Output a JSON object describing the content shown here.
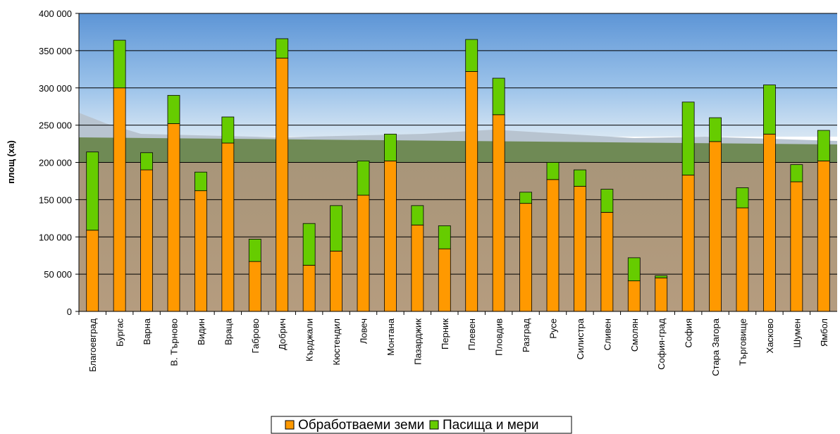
{
  "chart_data": {
    "type": "stacked_bar",
    "y_label": "площ (ха)",
    "categories": [
      "Благоевград",
      "Бургас",
      "Варна",
      "В. Търново",
      "Видин",
      "Враца",
      "Габрово",
      "Добрич",
      "Кърджали",
      "Кюстендил",
      "Ловеч",
      "Монтана",
      "Пазарджик",
      "Перник",
      "Плевен",
      "Пловдив",
      "Разград",
      "Русе",
      "Силистра",
      "Сливен",
      "Смолян",
      "София-град",
      "София",
      "Стара Загора",
      "Търговище",
      "Хасково",
      "Шумен",
      "Ямбол"
    ],
    "series": [
      {
        "name": "Обработваеми земи",
        "color": "#ff9900",
        "values": [
          109000,
          300000,
          190000,
          252000,
          162000,
          226000,
          67000,
          340000,
          62000,
          81000,
          156000,
          202000,
          116000,
          84000,
          322000,
          264000,
          145000,
          177000,
          168000,
          133000,
          41000,
          45000,
          183000,
          228000,
          139000,
          238000,
          174000,
          202000
        ]
      },
      {
        "name": "Пасища и мери",
        "color": "#66cc00",
        "values": [
          105000,
          64000,
          23000,
          38000,
          25000,
          35000,
          30000,
          26000,
          56000,
          61000,
          46000,
          36000,
          26000,
          31000,
          43000,
          49000,
          15000,
          23000,
          22000,
          31000,
          31000,
          3000,
          98000,
          32000,
          27000,
          66000,
          23000,
          41000
        ]
      }
    ],
    "ylim": [
      0,
      400000
    ],
    "yticks": [
      0,
      {
        "value": 50000,
        "label": "50 000"
      },
      {
        "value": 100000,
        "label": "100 000"
      },
      {
        "value": 150000,
        "label": "150 000"
      },
      {
        "value": 200000,
        "label": "200 000"
      },
      {
        "value": 250000,
        "label": "250 000"
      },
      {
        "value": 300000,
        "label": "300 000"
      },
      {
        "value": 350000,
        "label": "350 000"
      },
      {
        "value": 400000,
        "label": "400 000"
      }
    ],
    "grid": true,
    "legend": "bottom"
  }
}
